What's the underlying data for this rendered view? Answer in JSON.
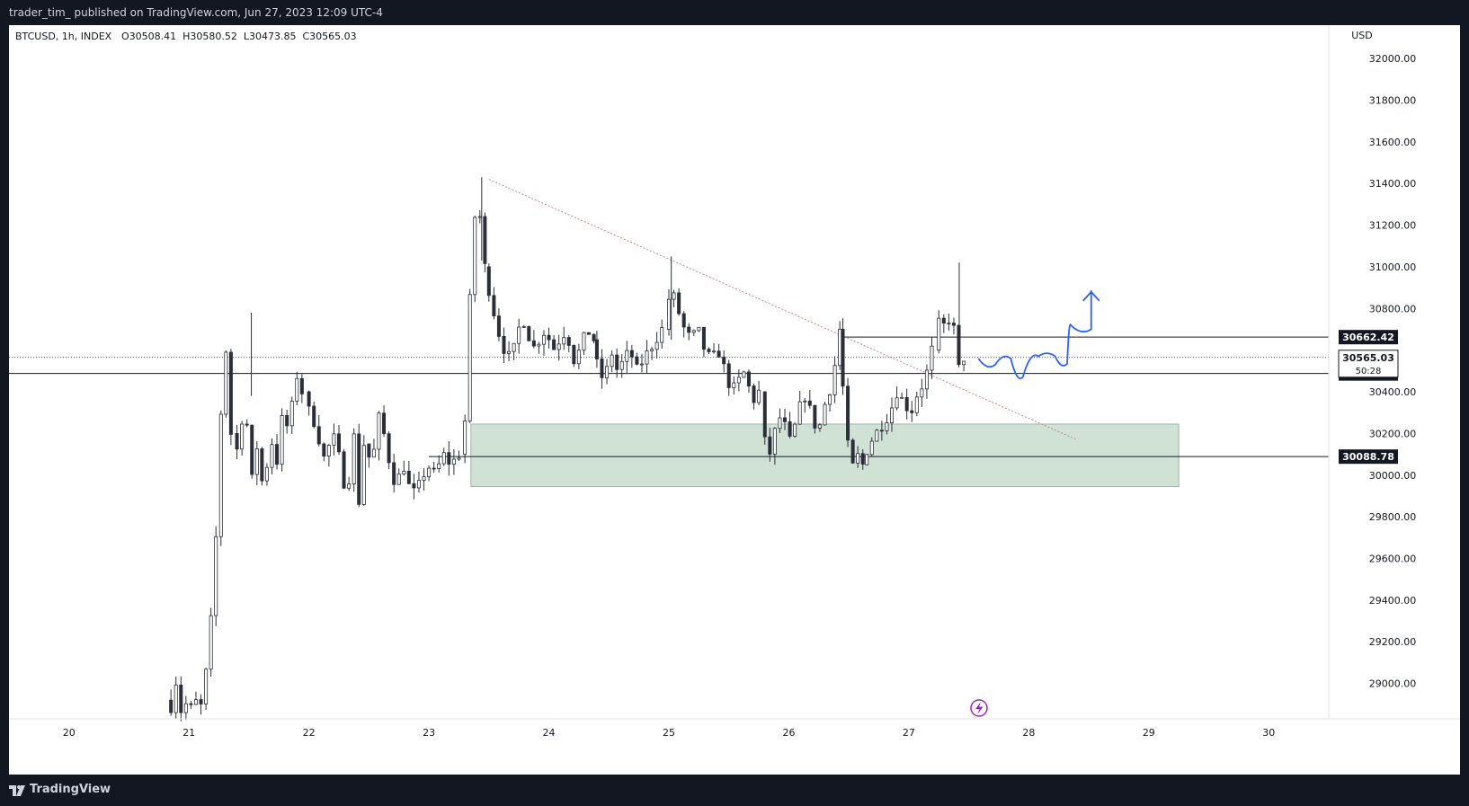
{
  "header": {
    "published_text": "trader_tim_ published on TradingView.com, Jun 27, 2023 12:09 UTC-4"
  },
  "footer": {
    "brand": "TradingView"
  },
  "chart_data": {
    "type": "candlestick",
    "symbol_info": "BTCUSD, 1h, INDEX",
    "ohlc_readout": "O30508.41  H30580.52  L30473.85  C30565.03",
    "currency": "USD",
    "ylim": [
      28830,
      32160
    ],
    "y_ticks": [
      "32000.00",
      "31800.00",
      "31600.00",
      "31400.00",
      "31200.00",
      "31000.00",
      "30800.00",
      "30400.00",
      "30200.00",
      "30000.00",
      "29800.00",
      "29600.00",
      "29400.00",
      "29200.00",
      "29000.00"
    ],
    "x_ticks": [
      "20",
      "21",
      "22",
      "23",
      "24",
      "25",
      "26",
      "27",
      "28",
      "29",
      "30"
    ],
    "x_range": [
      19.5,
      30.5
    ],
    "candle_segments": [
      {
        "t0": 20.85,
        "t1": 21.4,
        "prices": [
          28920,
          28890,
          29010,
          28870,
          28900,
          28880,
          28910,
          28890,
          29050,
          29300,
          29700,
          30300,
          30600,
          30200
        ]
      },
      {
        "t0": 21.4,
        "t1": 22.0,
        "prices": [
          30200,
          30100,
          30400,
          29950,
          30150,
          29900,
          30200,
          30050,
          30300,
          30200,
          30500,
          30400
        ]
      },
      {
        "t0": 22.0,
        "t1": 22.5,
        "prices": [
          30400,
          30300,
          30250,
          30150,
          30050,
          30200,
          30150,
          30000,
          29900,
          30250,
          29850,
          30150
        ]
      },
      {
        "t0": 22.5,
        "t1": 23.3,
        "prices": [
          30150,
          30050,
          30300,
          30100,
          29950,
          30050,
          29900,
          29950,
          30050,
          30000,
          30100,
          30050,
          30100
        ]
      },
      {
        "t0": 23.3,
        "t1": 23.5,
        "prices": [
          30100,
          30300,
          31200,
          31300,
          31000
        ]
      },
      {
        "t0": 23.5,
        "t1": 24.4,
        "prices": [
          31000,
          30850,
          30700,
          30600,
          30550,
          30700,
          30750,
          30600,
          30650,
          30700,
          30600,
          30650,
          30700,
          30550,
          30600,
          30700,
          30650
        ]
      },
      {
        "t0": 24.4,
        "t1": 25.0,
        "prices": [
          30650,
          30500,
          30450,
          30600,
          30500,
          30550,
          30600,
          30500,
          30550,
          30600,
          30650,
          30700
        ]
      },
      {
        "t0": 25.0,
        "t1": 25.8,
        "prices": [
          30700,
          30900,
          30800,
          30700,
          30650,
          30700,
          30600,
          30550,
          30600,
          30500,
          30400,
          30450,
          30500,
          30350,
          30400
        ]
      },
      {
        "t0": 25.8,
        "t1": 26.45,
        "prices": [
          30400,
          30050,
          30200,
          30300,
          30150,
          30250,
          30400,
          30300,
          30200,
          30350,
          30450,
          30700
        ]
      },
      {
        "t0": 26.45,
        "t1": 26.65,
        "prices": [
          30700,
          30350,
          30000,
          30100,
          30050
        ]
      },
      {
        "t0": 26.65,
        "t1": 27.25,
        "prices": [
          30050,
          30150,
          30200,
          30250,
          30300,
          30400,
          30350,
          30300,
          30400,
          30450,
          30600
        ]
      },
      {
        "t0": 27.25,
        "t1": 27.5,
        "prices": [
          30600,
          30750,
          30700,
          30800,
          30500,
          30565
        ]
      }
    ],
    "spikes": [
      {
        "t": 21.52,
        "high": 30780
      },
      {
        "t": 23.44,
        "high": 31430
      },
      {
        "t": 25.02,
        "high": 31050
      },
      {
        "t": 27.42,
        "high": 31020
      }
    ],
    "horizontal_levels": [
      {
        "label": "30662.42",
        "price": 30662.42,
        "t_start": 26.45
      },
      {
        "label": "30487.88",
        "price": 30487.88,
        "t_start": 19.5
      },
      {
        "label": "30088.78",
        "price": 30088.78,
        "t_start": 23.0
      }
    ],
    "last_price": {
      "label": "30565.03",
      "price": 30565.03,
      "countdown": "50:28"
    },
    "support_zone": {
      "t0": 23.35,
      "t1": 29.25,
      "top": 30245,
      "bottom": 29945,
      "color": "#d0e2d5"
    },
    "trendline": {
      "t0": 23.5,
      "p0": 31420,
      "t1": 28.4,
      "p1": 30170,
      "color": "#d08088"
    },
    "projection_path": [
      [
        27.58,
        30560
      ],
      [
        27.72,
        30530
      ],
      [
        27.85,
        30560
      ],
      [
        27.95,
        30470
      ],
      [
        28.08,
        30570
      ],
      [
        28.22,
        30570
      ],
      [
        28.32,
        30535
      ],
      [
        28.35,
        30720
      ],
      [
        28.52,
        30700
      ],
      [
        28.52,
        30880
      ]
    ],
    "projection_color": "#2962ff",
    "candle_color": "#2a2e39"
  }
}
